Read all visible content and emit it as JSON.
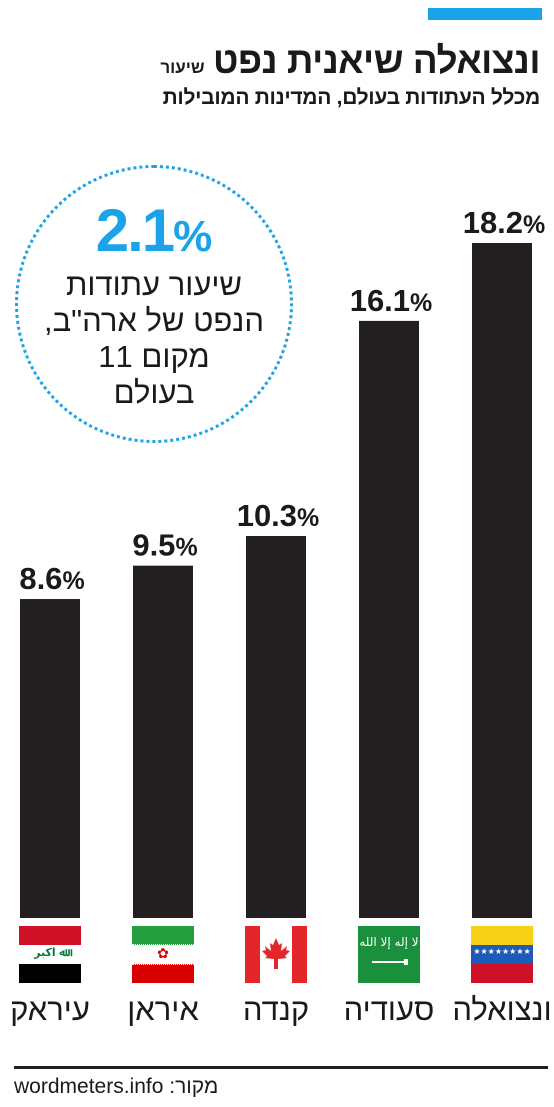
{
  "header": {
    "title": "ונצואלה שיאנית נפט",
    "title_small": "שיעור",
    "subtitle": "מכלל העתודות בעולם, המדינות המובילות"
  },
  "callout": {
    "value": "2.1",
    "unit": "%",
    "lines": [
      "שיעור עתודות",
      "הנפט של ארה\"ב,",
      "מקום 11",
      "בעולם"
    ]
  },
  "chart_data": {
    "type": "bar",
    "categories": [
      "עיראק",
      "איראן",
      "קנדה",
      "סעודיה",
      "ונצואלה"
    ],
    "values": [
      8.6,
      9.5,
      10.3,
      16.1,
      18.2
    ],
    "value_labels": [
      "8.6",
      "9.5",
      "10.3",
      "16.1",
      "18.2"
    ],
    "value_unit": "%",
    "flags": [
      "iraq-flag",
      "iran-flag",
      "canada-flag",
      "saudi-flag",
      "venezuela-flag"
    ],
    "title": "",
    "xlabel": "",
    "ylabel": "",
    "ylim": [
      0,
      18.2
    ],
    "grid": false
  },
  "colors": {
    "accent": "#1aa3e8",
    "bar": "#231f20"
  },
  "footer": {
    "source": "wordmeters.info :מקור"
  }
}
